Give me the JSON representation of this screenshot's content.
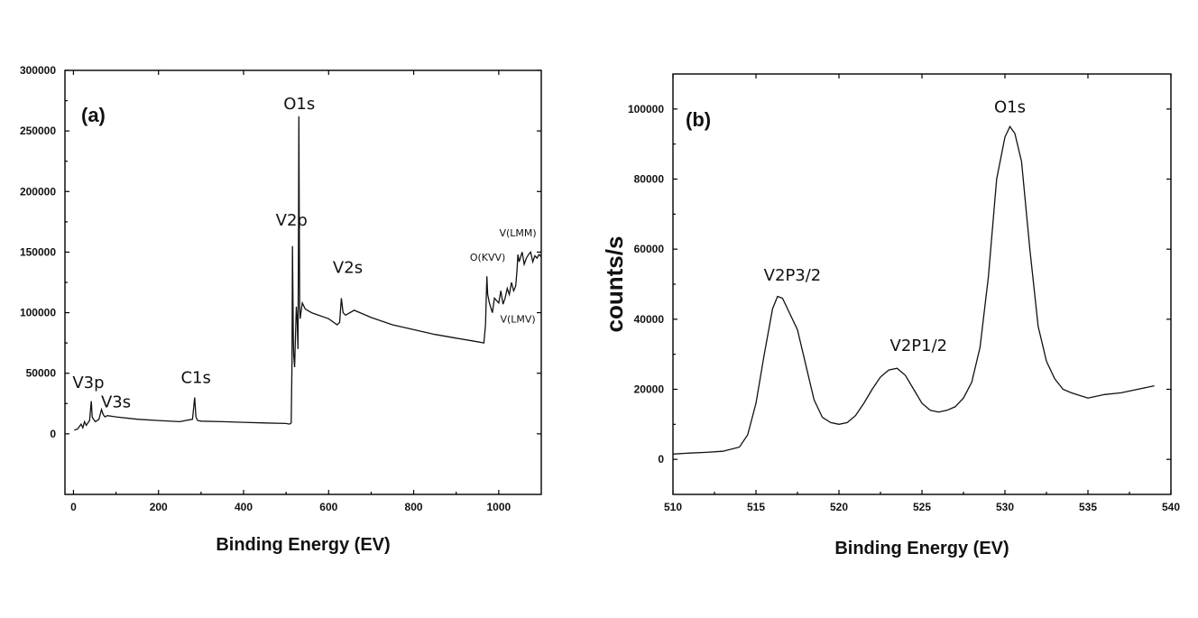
{
  "chart_data": [
    {
      "panel": "(a)",
      "type": "line",
      "title": "",
      "xlabel": "Binding Energy (EV)",
      "ylabel": "",
      "xlim": [
        -20,
        1100
      ],
      "ylim": [
        -50000,
        300000
      ],
      "xticks": [
        0,
        200,
        400,
        600,
        800,
        1000
      ],
      "yticks": [
        0,
        50000,
        100000,
        150000,
        200000,
        250000,
        300000
      ],
      "grid": false,
      "annotations": [
        {
          "text": "O1s",
          "x": 531,
          "y": 268000,
          "size": 18
        },
        {
          "text": "V2p",
          "x": 513,
          "y": 172000,
          "size": 18
        },
        {
          "text": "V2s",
          "x": 645,
          "y": 133000,
          "size": 18
        },
        {
          "text": "C1s",
          "x": 288,
          "y": 42000,
          "size": 18
        },
        {
          "text": "V3p",
          "x": 35,
          "y": 38000,
          "size": 18
        },
        {
          "text": "V3s",
          "x": 100,
          "y": 22000,
          "size": 18
        },
        {
          "text": "O(KVV)",
          "x": 974,
          "y": 143000,
          "size": 11
        },
        {
          "text": "V(LMM)",
          "x": 1045,
          "y": 163000,
          "size": 11
        },
        {
          "text": "V(LMV)",
          "x": 1045,
          "y": 92000,
          "size": 11
        }
      ],
      "series": [
        {
          "x": [
            2,
            10,
            18,
            22,
            26,
            30,
            38,
            42,
            44,
            47,
            52,
            60,
            66,
            70,
            74,
            80,
            100,
            150,
            200,
            250,
            280,
            285,
            288,
            292,
            300,
            350,
            400,
            450,
            500,
            508,
            512,
            514,
            515,
            516,
            517,
            518,
            520,
            522,
            524,
            526,
            528,
            529,
            530,
            531,
            532,
            533,
            535,
            538,
            545,
            560,
            600,
            620,
            626,
            630,
            634,
            640,
            660,
            700,
            750,
            800,
            850,
            900,
            950,
            965,
            969,
            972,
            974,
            978,
            985,
            990,
            1000,
            1005,
            1010,
            1015,
            1020,
            1025,
            1030,
            1035,
            1040,
            1043,
            1045,
            1048,
            1055,
            1060,
            1065,
            1070,
            1075,
            1080,
            1085,
            1090,
            1095,
            1100
          ],
          "y": [
            3000,
            4000,
            8000,
            5000,
            10000,
            7000,
            11000,
            27000,
            14000,
            12000,
            10000,
            12000,
            20000,
            16000,
            14000,
            15000,
            14000,
            12000,
            11000,
            10000,
            12000,
            30000,
            14000,
            11000,
            10500,
            10000,
            9500,
            9000,
            8500,
            8000,
            9000,
            60000,
            155000,
            115000,
            75000,
            65000,
            55000,
            80000,
            105000,
            95000,
            70000,
            150000,
            262000,
            170000,
            105000,
            95000,
            100000,
            108000,
            103000,
            100000,
            95000,
            90000,
            92000,
            112000,
            100000,
            98000,
            102000,
            96000,
            90000,
            86000,
            82000,
            79000,
            76000,
            75000,
            90000,
            130000,
            115000,
            108000,
            100000,
            112000,
            108000,
            118000,
            107000,
            112000,
            120000,
            115000,
            125000,
            118000,
            122000,
            135000,
            148000,
            142000,
            150000,
            140000,
            145000,
            148000,
            150000,
            142000,
            147000,
            145000,
            148000,
            146000
          ]
        }
      ]
    },
    {
      "panel": "(b)",
      "type": "line",
      "title": "",
      "xlabel": "Binding Energy (EV)",
      "ylabel": "counts/s",
      "xlim": [
        510,
        540
      ],
      "ylim": [
        -10000,
        110000
      ],
      "xticks": [
        510,
        515,
        520,
        525,
        530,
        535,
        540
      ],
      "yticks": [
        0,
        20000,
        40000,
        60000,
        80000,
        100000
      ],
      "grid": false,
      "annotations": [
        {
          "text": "O1s",
          "x": 530.3,
          "y": 99000,
          "size": 18
        },
        {
          "text": "V2P3/2",
          "x": 517.2,
          "y": 51000,
          "size": 18
        },
        {
          "text": "V2P1/2",
          "x": 524.8,
          "y": 31000,
          "size": 18
        }
      ],
      "series": [
        {
          "x": [
            510,
            511,
            512,
            513,
            514,
            514.5,
            515,
            515.5,
            516,
            516.3,
            516.6,
            517,
            517.5,
            518,
            518.5,
            519,
            519.5,
            520,
            520.5,
            521,
            521.5,
            522,
            522.5,
            523,
            523.5,
            524,
            524.5,
            525,
            525.5,
            526,
            526.5,
            527,
            527.5,
            528,
            528.5,
            529,
            529.5,
            530,
            530.3,
            530.6,
            531,
            531.5,
            532,
            532.5,
            533,
            533.5,
            534,
            535,
            536,
            537,
            538,
            539
          ],
          "y": [
            1500,
            1800,
            2000,
            2300,
            3500,
            7000,
            16000,
            30000,
            43000,
            46500,
            46000,
            42000,
            37000,
            27000,
            17000,
            12000,
            10500,
            10000,
            10500,
            12500,
            16000,
            20000,
            23500,
            25500,
            26000,
            24000,
            20000,
            16000,
            14000,
            13500,
            14000,
            15000,
            17500,
            22000,
            32000,
            52000,
            80000,
            92000,
            95000,
            93000,
            85000,
            60000,
            38000,
            28000,
            23000,
            20000,
            19000,
            17500,
            18500,
            19000,
            20000,
            21000
          ]
        }
      ]
    }
  ]
}
